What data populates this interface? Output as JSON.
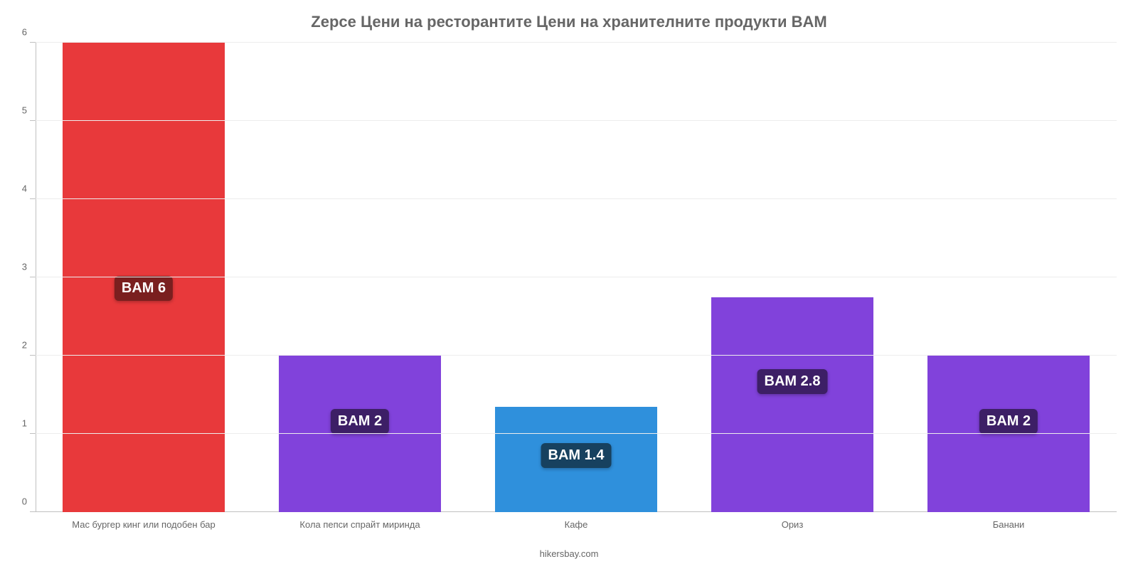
{
  "chart": {
    "type": "bar",
    "title": "Zерсе Цени на ресторантите Цени на хранителните продукти BAM",
    "title_fontsize": 22,
    "title_color": "#666666",
    "background_color": "#ffffff",
    "grid_color": "#ededed",
    "axis_color": "#c0c0c0",
    "footer_text": "hikersbay.com",
    "footer_fontsize": 13,
    "x_label_fontsize": 13,
    "y_label_fontsize": 13,
    "bar_label_fontsize": 20,
    "ylim": [
      0,
      6
    ],
    "ytick_step": 1,
    "bar_width_ratio": 0.75,
    "categories": [
      "Мас бургер кинг или подобен бар",
      "Кола пепси спрайт миринда",
      "Кафе",
      "Ориз",
      "Банани"
    ],
    "values": [
      6,
      2,
      1.35,
      2.75,
      2
    ],
    "value_labels": [
      "BAM 6",
      "BAM 2",
      "BAM 1.4",
      "BAM 2.8",
      "BAM 2"
    ],
    "bar_colors": [
      "#e8393b",
      "#8142db",
      "#2f90dc",
      "#8142db",
      "#8142db"
    ],
    "label_bg_colors": [
      "#7a1f1f",
      "#3d1f66",
      "#17415f",
      "#3d1f66",
      "#3d1f66"
    ],
    "label_y_offsets": [
      0.45,
      0.5,
      0.42,
      0.55,
      0.5
    ]
  }
}
